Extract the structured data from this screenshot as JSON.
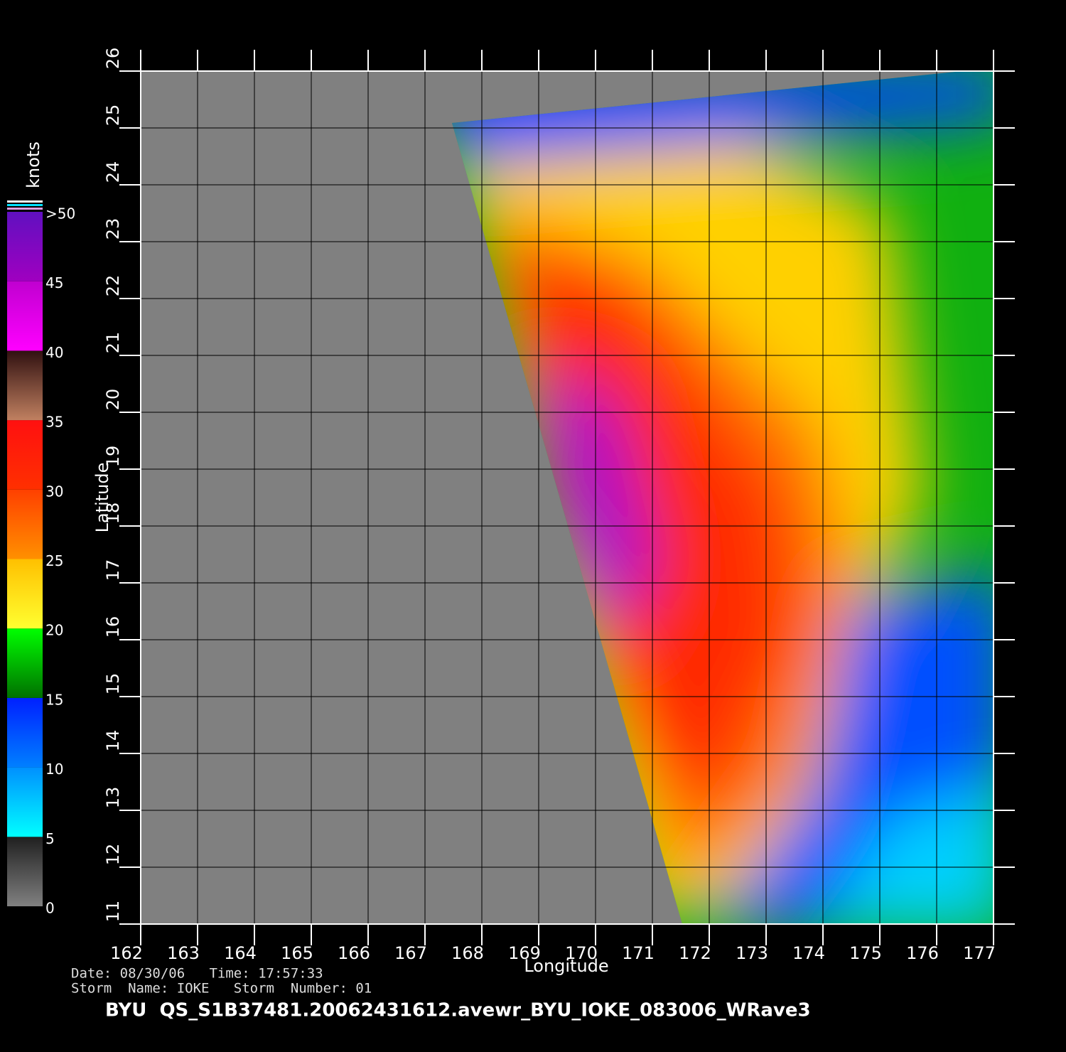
{
  "plot": {
    "xlabel": "Longitude",
    "ylabel": "Latitude",
    "xlim": [
      162,
      177
    ],
    "ylim": [
      11,
      26
    ],
    "xticks": [
      162,
      163,
      164,
      165,
      166,
      167,
      168,
      169,
      170,
      171,
      172,
      173,
      174,
      175,
      176,
      177
    ],
    "yticks": [
      11,
      12,
      13,
      14,
      15,
      16,
      17,
      18,
      19,
      20,
      21,
      22,
      23,
      24,
      25,
      26
    ]
  },
  "colorbar": {
    "title": "knots",
    "lim": [
      0,
      50
    ],
    "ticks": [
      0,
      5,
      10,
      15,
      20,
      25,
      30,
      35,
      40,
      45,
      {
        "value": 50,
        "label": ">50"
      }
    ],
    "colors": [
      [
        "#808080",
        "#202020"
      ],
      [
        "#00ffff",
        "#0090ff"
      ],
      [
        "#0080ff",
        "#0020ff"
      ],
      [
        "#007000",
        "#00ff00"
      ],
      [
        "#ffff30",
        "#ffc000"
      ],
      [
        "#ff9000",
        "#ff4000"
      ],
      [
        "#ff3000",
        "#ff1010"
      ],
      [
        "#c08060",
        "#301010"
      ],
      [
        "#ff00ff",
        "#c000d0"
      ],
      [
        "#a000c0",
        "#6010c0"
      ]
    ]
  },
  "info": {
    "date_line": "Date: 08/30/06   Time: 17:57:33",
    "storm_line": "Storm  Name: IOKE   Storm  Number: 01",
    "file": "BYU  QS_S1B37481.20062431612.avewr_BYU_IOKE_083006_WRave3"
  }
}
